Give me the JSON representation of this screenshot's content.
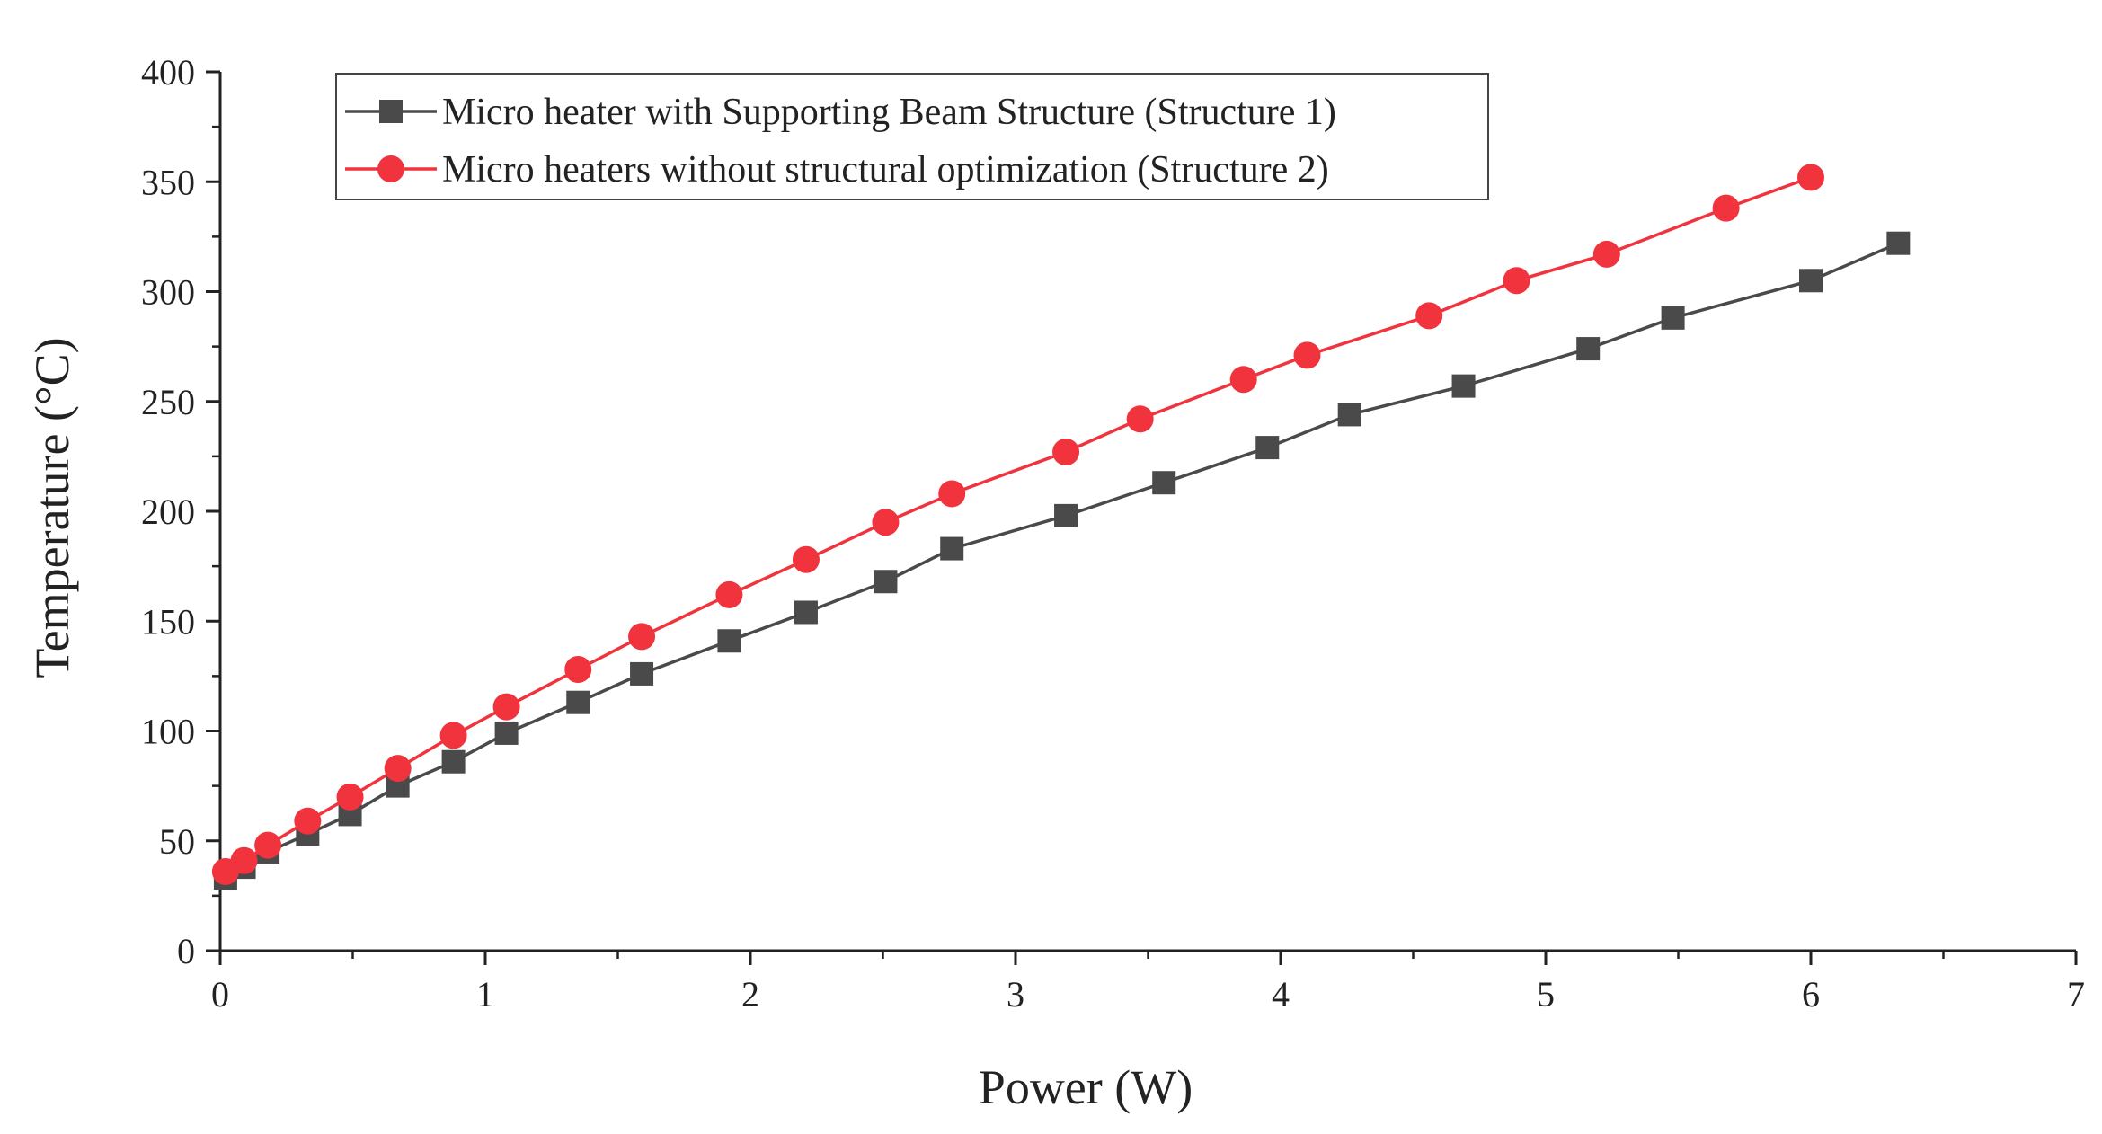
{
  "chart_data": {
    "type": "line",
    "xlabel": "Power (W)",
    "ylabel": "Temperature (°C)",
    "xlim": [
      0,
      7
    ],
    "ylim": [
      0,
      400
    ],
    "x_ticks": [
      0,
      1,
      2,
      3,
      4,
      5,
      6,
      7
    ],
    "y_ticks": [
      0,
      50,
      100,
      150,
      200,
      250,
      300,
      350,
      400
    ],
    "grid": false,
    "legend_position": "top-left",
    "series": [
      {
        "name": "Micro heater with Supporting Beam Structure (Structure 1)",
        "marker": "square",
        "color": "#4a4a4a",
        "points": [
          [
            0.02,
            33
          ],
          [
            0.09,
            38
          ],
          [
            0.18,
            45
          ],
          [
            0.33,
            53
          ],
          [
            0.49,
            62
          ],
          [
            0.67,
            75
          ],
          [
            0.88,
            86
          ],
          [
            1.08,
            99
          ],
          [
            1.35,
            113
          ],
          [
            1.59,
            126
          ],
          [
            1.92,
            141
          ],
          [
            2.21,
            154
          ],
          [
            2.51,
            168
          ],
          [
            2.76,
            183
          ],
          [
            3.19,
            198
          ],
          [
            3.56,
            213
          ],
          [
            3.95,
            229
          ],
          [
            4.26,
            244
          ],
          [
            4.69,
            257
          ],
          [
            5.16,
            274
          ],
          [
            5.48,
            288
          ],
          [
            6.0,
            305
          ],
          [
            6.33,
            322
          ]
        ]
      },
      {
        "name": "Micro heaters without structural optimization (Structure 2)",
        "marker": "circle",
        "color": "#f0333c",
        "points": [
          [
            0.02,
            36
          ],
          [
            0.09,
            41
          ],
          [
            0.18,
            48
          ],
          [
            0.33,
            59
          ],
          [
            0.49,
            70
          ],
          [
            0.67,
            83
          ],
          [
            0.88,
            98
          ],
          [
            1.08,
            111
          ],
          [
            1.35,
            128
          ],
          [
            1.59,
            143
          ],
          [
            1.92,
            162
          ],
          [
            2.21,
            178
          ],
          [
            2.51,
            195
          ],
          [
            2.76,
            208
          ],
          [
            3.19,
            227
          ],
          [
            3.47,
            242
          ],
          [
            3.86,
            260
          ],
          [
            4.1,
            271
          ],
          [
            4.56,
            289
          ],
          [
            4.89,
            305
          ],
          [
            5.23,
            317
          ],
          [
            5.68,
            338
          ],
          [
            6.0,
            352
          ]
        ]
      }
    ]
  }
}
